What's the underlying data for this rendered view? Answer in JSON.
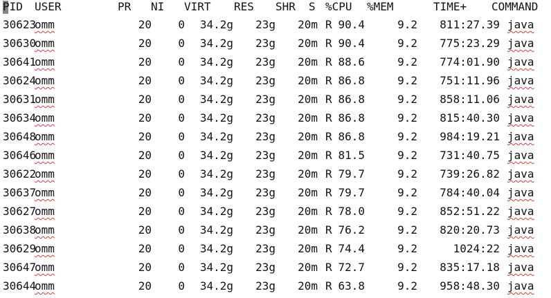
{
  "header": {
    "pid": "PID",
    "user": "USER",
    "pr": "PR",
    "ni": "NI",
    "virt": "VIRT",
    "res": "RES",
    "shr": "SHR",
    "s": "S",
    "cpu": "%CPU",
    "mem": "%MEM",
    "time": "TIME+",
    "command": "COMMAND"
  },
  "rows": [
    {
      "pid": "30623",
      "user": "omm",
      "pr": "20",
      "ni": "0",
      "virt": "34.2g",
      "res": "23g",
      "shr": "20m",
      "s": "R",
      "cpu": "90.4",
      "mem": "9.2",
      "time": "811:27.39",
      "command": "java"
    },
    {
      "pid": "30630",
      "user": "omm",
      "pr": "20",
      "ni": "0",
      "virt": "34.2g",
      "res": "23g",
      "shr": "20m",
      "s": "R",
      "cpu": "90.4",
      "mem": "9.2",
      "time": "775:23.29",
      "command": "java"
    },
    {
      "pid": "30641",
      "user": "omm",
      "pr": "20",
      "ni": "0",
      "virt": "34.2g",
      "res": "23g",
      "shr": "20m",
      "s": "R",
      "cpu": "88.6",
      "mem": "9.2",
      "time": "774:01.90",
      "command": "java"
    },
    {
      "pid": "30624",
      "user": "omm",
      "pr": "20",
      "ni": "0",
      "virt": "34.2g",
      "res": "23g",
      "shr": "20m",
      "s": "R",
      "cpu": "86.8",
      "mem": "9.2",
      "time": "751:11.96",
      "command": "java"
    },
    {
      "pid": "30631",
      "user": "omm",
      "pr": "20",
      "ni": "0",
      "virt": "34.2g",
      "res": "23g",
      "shr": "20m",
      "s": "R",
      "cpu": "86.8",
      "mem": "9.2",
      "time": "858:11.06",
      "command": "java"
    },
    {
      "pid": "30634",
      "user": "omm",
      "pr": "20",
      "ni": "0",
      "virt": "34.2g",
      "res": "23g",
      "shr": "20m",
      "s": "R",
      "cpu": "86.8",
      "mem": "9.2",
      "time": "815:40.30",
      "command": "java"
    },
    {
      "pid": "30648",
      "user": "omm",
      "pr": "20",
      "ni": "0",
      "virt": "34.2g",
      "res": "23g",
      "shr": "20m",
      "s": "R",
      "cpu": "86.8",
      "mem": "9.2",
      "time": "984:19.21",
      "command": "java"
    },
    {
      "pid": "30646",
      "user": "omm",
      "pr": "20",
      "ni": "0",
      "virt": "34.2g",
      "res": "23g",
      "shr": "20m",
      "s": "R",
      "cpu": "81.5",
      "mem": "9.2",
      "time": "731:40.75",
      "command": "java"
    },
    {
      "pid": "30622",
      "user": "omm",
      "pr": "20",
      "ni": "0",
      "virt": "34.2g",
      "res": "23g",
      "shr": "20m",
      "s": "R",
      "cpu": "79.7",
      "mem": "9.2",
      "time": "739:26.82",
      "command": "java"
    },
    {
      "pid": "30637",
      "user": "omm",
      "pr": "20",
      "ni": "0",
      "virt": "34.2g",
      "res": "23g",
      "shr": "20m",
      "s": "R",
      "cpu": "79.7",
      "mem": "9.2",
      "time": "784:40.04",
      "command": "java"
    },
    {
      "pid": "30627",
      "user": "omm",
      "pr": "20",
      "ni": "0",
      "virt": "34.2g",
      "res": "23g",
      "shr": "20m",
      "s": "R",
      "cpu": "78.0",
      "mem": "9.2",
      "time": "852:51.22",
      "command": "java"
    },
    {
      "pid": "30638",
      "user": "omm",
      "pr": "20",
      "ni": "0",
      "virt": "34.2g",
      "res": "23g",
      "shr": "20m",
      "s": "R",
      "cpu": "76.2",
      "mem": "9.2",
      "time": "820:20.73",
      "command": "java"
    },
    {
      "pid": "30629",
      "user": "omm",
      "pr": "20",
      "ni": "0",
      "virt": "34.2g",
      "res": "23g",
      "shr": "20m",
      "s": "R",
      "cpu": "74.4",
      "mem": "9.2",
      "time": "1024:22",
      "command": "java"
    },
    {
      "pid": "30647",
      "user": "omm",
      "pr": "20",
      "ni": "0",
      "virt": "34.2g",
      "res": "23g",
      "shr": "20m",
      "s": "R",
      "cpu": "72.7",
      "mem": "9.2",
      "time": "835:17.18",
      "command": "java"
    },
    {
      "pid": "30644",
      "user": "omm",
      "pr": "20",
      "ni": "0",
      "virt": "34.2g",
      "res": "23g",
      "shr": "20m",
      "s": "R",
      "cpu": "63.8",
      "mem": "9.2",
      "time": "958:48.30",
      "command": "java"
    }
  ]
}
